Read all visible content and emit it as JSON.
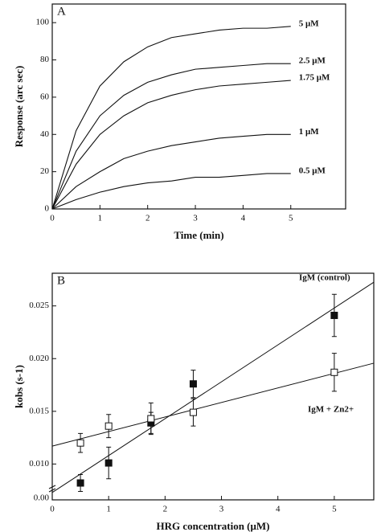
{
  "chart_data": [
    {
      "type": "line",
      "panel_label": "A",
      "xlabel": "Time (min)",
      "ylabel": "Response (arc sec)",
      "x": [
        0,
        0.5,
        1,
        1.5,
        2,
        2.5,
        3,
        3.5,
        4,
        4.5,
        5
      ],
      "series": [
        {
          "name": "5 μM",
          "color": "#111111",
          "values": [
            0,
            42,
            66,
            79,
            87,
            92,
            94,
            96,
            97,
            97,
            98
          ]
        },
        {
          "name": "2.5 μM",
          "color": "#111111",
          "values": [
            0,
            31,
            50,
            61,
            68,
            72,
            75,
            76,
            77,
            78,
            78
          ]
        },
        {
          "name": "1.75 μM",
          "color": "#111111",
          "values": [
            0,
            24,
            40,
            50,
            57,
            61,
            64,
            66,
            67,
            68,
            69
          ]
        },
        {
          "name": "1 μM",
          "color": "#111111",
          "values": [
            0,
            12,
            20,
            27,
            31,
            34,
            36,
            38,
            39,
            40,
            40
          ]
        },
        {
          "name": "0.5 μM",
          "color": "#111111",
          "values": [
            0,
            5,
            9,
            12,
            14,
            15,
            17,
            17,
            18,
            19,
            19
          ]
        }
      ],
      "xlim": [
        0,
        6.15
      ],
      "xticks": [
        0,
        1,
        2,
        3,
        4,
        5
      ],
      "ylim": [
        0,
        110
      ],
      "yticks": [
        0,
        20,
        40,
        60,
        80,
        100
      ]
    },
    {
      "type": "scatter",
      "panel_label": "B",
      "xlabel": "HRG concentration (μM)",
      "ylabel": "kobs (s-1)",
      "series": [
        {
          "name": "IgM (control)",
          "color": "#111111",
          "marker": "filled",
          "x": [
            0.5,
            1,
            1.75,
            2.5,
            5
          ],
          "values": [
            0.0082,
            0.0101,
            0.0139,
            0.0176,
            0.0241
          ],
          "errors": [
            0.0008,
            0.0015,
            0.001,
            0.0013,
            0.002
          ],
          "fit": {
            "intercept": 0.0073,
            "slope": 0.0035
          }
        },
        {
          "name": "IgM + Zn2+",
          "color": "#111111",
          "marker": "open",
          "x": [
            0.5,
            1,
            1.75,
            2.5,
            5
          ],
          "values": [
            0.012,
            0.0136,
            0.0143,
            0.0149,
            0.0187
          ],
          "errors": [
            0.0009,
            0.0011,
            0.0015,
            0.0013,
            0.0018
          ],
          "fit": {
            "intercept": 0.0117,
            "slope": 0.00138
          }
        }
      ],
      "xlim": [
        0,
        5.7
      ],
      "xticks": [
        0,
        1,
        2,
        3,
        4,
        5
      ],
      "ylim": [
        0.0066,
        0.0281
      ],
      "yticks": [
        {
          "value": 0.01,
          "label": "0.010"
        },
        0.015,
        {
          "value": 0.02,
          "label": "0.020"
        },
        0.025
      ],
      "axis_break_label": "0.00"
    }
  ]
}
